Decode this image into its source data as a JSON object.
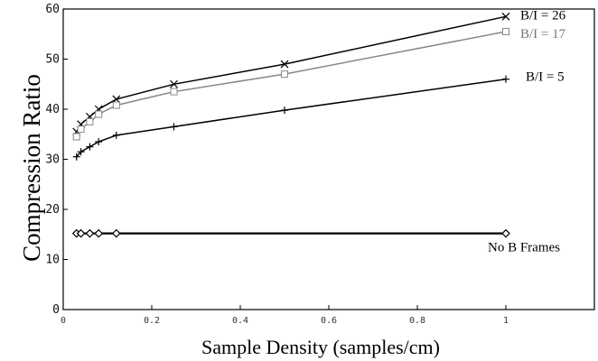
{
  "chart_data": {
    "type": "line",
    "xlabel": "Sample Density (samples/cm)",
    "ylabel": "Compression Ratio",
    "xlim": [
      0,
      1.2
    ],
    "ylim": [
      0,
      60
    ],
    "x_ticks": [
      {
        "value": 0,
        "label": "0"
      },
      {
        "value": 0.2,
        "label": "0.2"
      },
      {
        "value": 0.4,
        "label": "0.4"
      },
      {
        "value": 0.6,
        "label": "0.6"
      },
      {
        "value": 0.8,
        "label": "0.8"
      },
      {
        "value": 1,
        "label": "1"
      }
    ],
    "y_ticks": [
      {
        "value": 0,
        "label": "0"
      },
      {
        "value": 10,
        "label": "10"
      },
      {
        "value": 20,
        "label": "20"
      },
      {
        "value": 30,
        "label": "30"
      },
      {
        "value": 40,
        "label": "40"
      },
      {
        "value": 50,
        "label": "50"
      },
      {
        "value": 60,
        "label": "60"
      }
    ],
    "grid": false,
    "series": [
      {
        "name": "B/I = 26",
        "marker": "x",
        "color": "#000000",
        "x": [
          0.03,
          0.04,
          0.06,
          0.08,
          0.12,
          0.25,
          0.5,
          1.0
        ],
        "y": [
          35.5,
          37,
          38.5,
          40,
          42,
          45,
          49,
          58.5
        ]
      },
      {
        "name": "B/I = 17",
        "marker": "square",
        "color": "#888888",
        "x": [
          0.03,
          0.04,
          0.06,
          0.08,
          0.12,
          0.25,
          0.5,
          1.0
        ],
        "y": [
          34.5,
          36,
          37.5,
          39,
          40.8,
          43.5,
          47,
          55.5
        ]
      },
      {
        "name": "B/I = 5",
        "marker": "plus",
        "color": "#000000",
        "x": [
          0.03,
          0.04,
          0.06,
          0.08,
          0.12,
          0.25,
          0.5,
          1.0
        ],
        "y": [
          30.5,
          31.5,
          32.5,
          33.5,
          34.8,
          36.5,
          39.8,
          46
        ]
      },
      {
        "name": "No B Frames",
        "marker": "diamond",
        "color": "#000000",
        "x": [
          0.03,
          0.04,
          0.06,
          0.08,
          0.12,
          1.0
        ],
        "y": [
          15.2,
          15.2,
          15.2,
          15.2,
          15.2,
          15.2
        ]
      }
    ]
  }
}
